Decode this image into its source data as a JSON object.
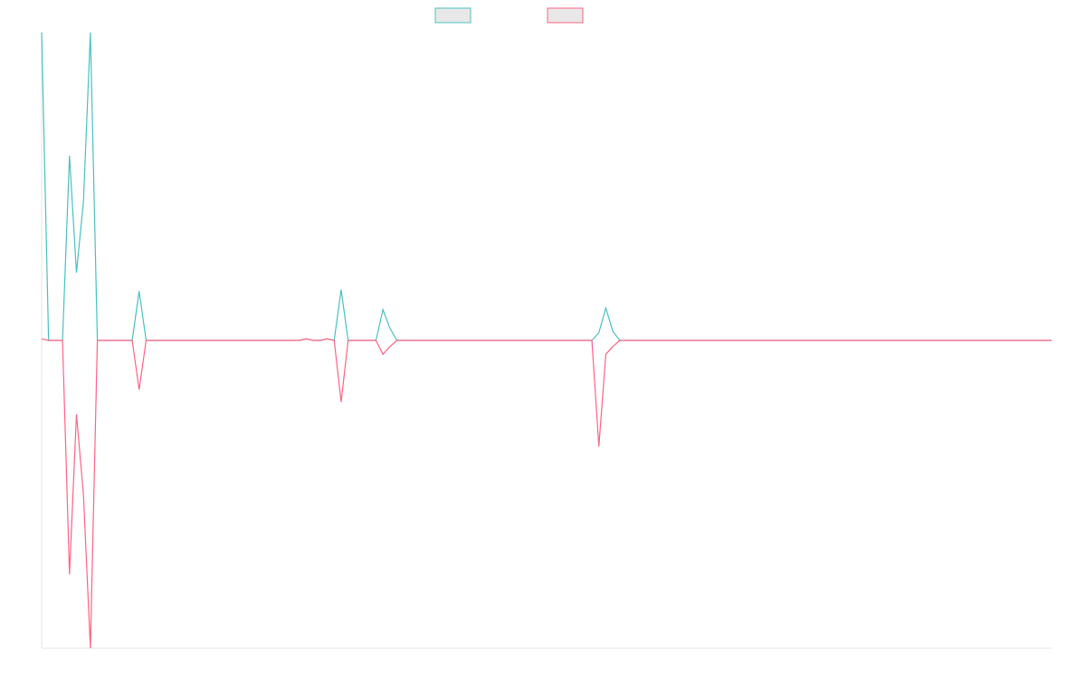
{
  "chart_data": {
    "type": "line",
    "title": "",
    "xlabel": "",
    "ylabel": "",
    "grid": false,
    "legend_position": "top-center",
    "ylim": [
      -100,
      100
    ],
    "x": [
      0,
      1,
      2,
      3,
      4,
      5,
      6,
      7,
      8,
      9,
      10,
      11,
      12,
      13,
      14,
      15,
      16,
      17,
      18,
      19,
      20,
      21,
      22,
      23,
      24,
      25,
      26,
      27,
      28,
      29,
      30,
      31,
      32,
      33,
      34,
      35,
      36,
      37,
      38,
      39,
      40,
      41,
      42,
      43,
      44,
      45,
      46,
      47,
      48,
      49,
      50,
      51,
      52,
      53,
      54,
      55,
      56,
      57,
      58,
      59,
      60,
      61,
      62,
      63,
      64,
      65,
      66,
      67,
      68,
      69,
      70,
      71,
      72,
      73,
      74,
      75,
      76,
      77,
      78,
      79,
      80,
      81,
      82,
      83,
      84,
      85,
      86,
      87,
      88,
      89,
      90,
      91,
      92,
      93,
      94,
      95,
      96,
      97,
      98,
      99,
      100,
      101,
      102,
      103,
      104,
      105,
      106,
      107,
      108,
      109,
      110,
      111,
      112,
      113,
      114,
      115,
      116,
      117,
      118,
      119,
      120,
      121,
      122,
      123,
      124,
      125,
      126,
      127,
      128,
      129,
      130,
      131,
      132,
      133,
      134,
      135,
      136,
      137,
      138,
      139,
      140,
      141,
      142,
      143,
      144,
      145
    ],
    "series": [
      {
        "color": "#4bc0c0",
        "values": [
          100,
          0,
          0,
          0,
          60,
          22,
          45,
          100,
          0,
          0,
          0,
          0,
          0,
          0,
          16,
          0,
          0,
          0,
          0,
          0,
          0,
          0,
          0,
          0,
          0,
          0,
          0,
          0,
          0,
          0,
          0,
          0,
          0,
          0,
          0,
          0,
          0,
          0,
          0.5,
          0,
          0,
          0.5,
          0,
          16.5,
          0,
          0,
          0,
          0,
          0,
          10,
          4,
          0,
          0,
          0,
          0,
          0,
          0,
          0,
          0,
          0,
          0,
          0,
          0,
          0,
          0,
          0,
          0,
          0,
          0,
          0,
          0,
          0,
          0,
          0,
          0,
          0,
          0,
          0,
          0,
          0,
          2.5,
          10.5,
          3,
          0,
          0,
          0,
          0,
          0,
          0,
          0,
          0,
          0,
          0,
          0,
          0,
          0,
          0,
          0,
          0,
          0,
          0,
          0,
          0,
          0,
          0,
          0,
          0,
          0,
          0,
          0,
          0,
          0,
          0,
          0,
          0,
          0,
          0,
          0,
          0,
          0,
          0,
          0,
          0,
          0,
          0,
          0,
          0,
          0,
          0,
          0,
          0,
          0,
          0,
          0,
          0,
          0,
          0,
          0,
          0,
          0,
          0,
          0,
          0,
          0,
          0,
          0
        ]
      },
      {
        "color": "#ff6384",
        "values": [
          0.5,
          0,
          0,
          0,
          -76,
          -24,
          -50,
          -100,
          0,
          0,
          0,
          0,
          0,
          0,
          -16,
          0,
          0,
          0,
          0,
          0,
          0,
          0,
          0,
          0,
          0,
          0,
          0,
          0,
          0,
          0,
          0,
          0,
          0,
          0,
          0,
          0,
          0,
          0,
          0.5,
          0,
          0,
          0.5,
          0,
          -20,
          0,
          0,
          0,
          0,
          0,
          -4.5,
          -2,
          0,
          0,
          0,
          0,
          0,
          0,
          0,
          0,
          0,
          0,
          0,
          0,
          0,
          0,
          0,
          0,
          0,
          0,
          0,
          0,
          0,
          0,
          0,
          0,
          0,
          0,
          0,
          0,
          0,
          -34.5,
          -4.5,
          -2,
          0,
          0,
          0,
          0,
          0,
          0,
          0,
          0,
          0,
          0,
          0,
          0,
          0,
          0,
          0,
          0,
          0,
          0,
          0,
          0,
          0,
          0,
          0,
          0,
          0,
          0,
          0,
          0,
          0,
          0,
          0,
          0,
          0,
          0,
          0,
          0,
          0,
          0,
          0,
          0,
          0,
          0,
          0,
          0,
          0,
          0,
          0,
          0,
          0,
          0,
          0,
          0,
          0,
          0,
          0,
          0,
          0,
          0,
          0,
          0,
          0,
          0,
          0
        ]
      }
    ]
  }
}
